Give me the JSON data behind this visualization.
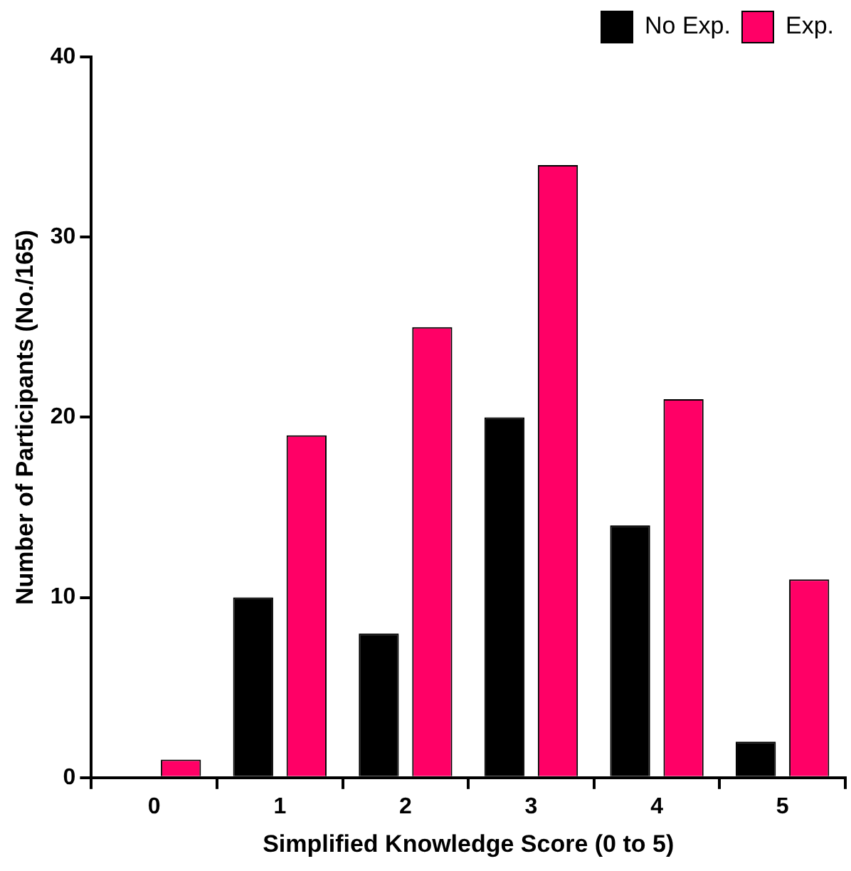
{
  "chart_data": {
    "type": "bar",
    "xlabel": "Simplified Knowledge Score (0 to 5)",
    "ylabel": "Number of Participants (No./165)",
    "categories": [
      "0",
      "1",
      "2",
      "3",
      "4",
      "5"
    ],
    "series": [
      {
        "name": "No Exp.",
        "color": "#000000",
        "values": [
          0,
          10,
          8,
          20,
          14,
          2
        ]
      },
      {
        "name": "Exp.",
        "color": "#ff0066",
        "values": [
          1,
          19,
          25,
          34,
          21,
          11
        ]
      }
    ],
    "ylim": [
      0,
      40
    ],
    "yticks": [
      0,
      10,
      20,
      30,
      40
    ],
    "grid": false,
    "legend": "top right"
  }
}
